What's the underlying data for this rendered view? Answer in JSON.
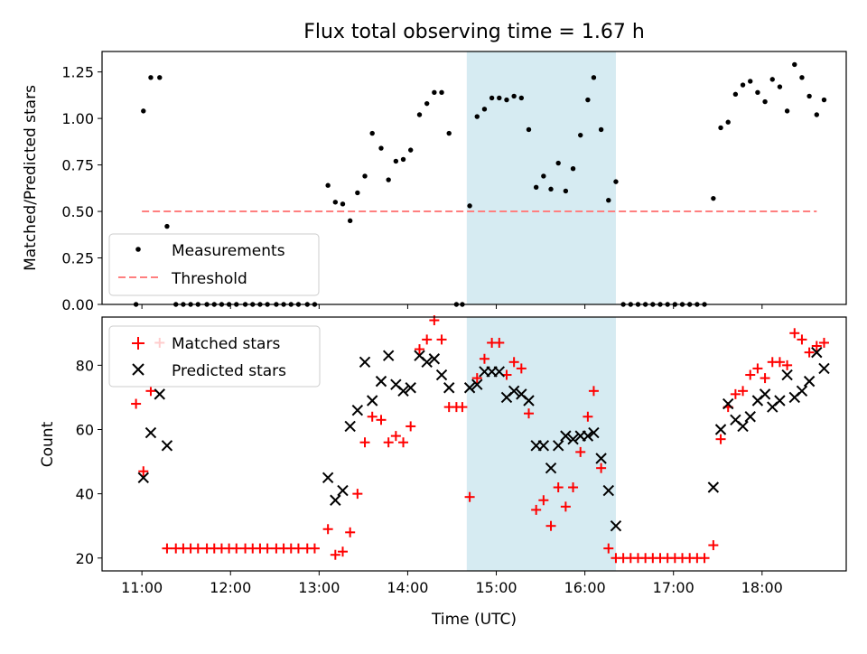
{
  "figure": {
    "title": "Flux total observing time = 1.67 h",
    "xlabel": "Time (UTC)"
  },
  "colors": {
    "measurement": "#000000",
    "threshold": "#ff7f7f",
    "matched": "#ff0000",
    "predicted": "#000000",
    "span": "#add8e6"
  },
  "chart_data": [
    {
      "type": "scatter",
      "ylabel": "Matched/Predicted stars",
      "xlim": [
        "10:33",
        "18:57"
      ],
      "ylim": [
        0,
        1.36
      ],
      "x_ticks": [
        "11:00",
        "12:00",
        "13:00",
        "14:00",
        "15:00",
        "16:00",
        "17:00",
        "18:00"
      ],
      "y_ticks": [
        "0.00",
        "0.25",
        "0.50",
        "0.75",
        "1.00",
        "1.25"
      ],
      "highlight_span": [
        "14:40",
        "16:21"
      ],
      "legend": {
        "placement": "lower-left",
        "entries": [
          "Measurements",
          "Threshold"
        ]
      },
      "threshold": {
        "name": "Threshold",
        "value": 0.5,
        "x_range": [
          "11:00",
          "18:37"
        ]
      },
      "series": [
        {
          "name": "Measurements",
          "points": [
            [
              "10:56",
              0.0
            ],
            [
              "11:01",
              1.04
            ],
            [
              "11:06",
              1.22
            ],
            [
              "11:12",
              1.22
            ],
            [
              "11:17",
              0.42
            ],
            [
              "11:23",
              0.0
            ],
            [
              "11:28",
              0.0
            ],
            [
              "11:33",
              0.0
            ],
            [
              "11:38",
              0.0
            ],
            [
              "11:44",
              0.0
            ],
            [
              "11:49",
              0.0
            ],
            [
              "11:54",
              0.0
            ],
            [
              "11:59",
              0.0
            ],
            [
              "12:04",
              0.0
            ],
            [
              "12:10",
              0.0
            ],
            [
              "12:15",
              0.0
            ],
            [
              "12:20",
              0.0
            ],
            [
              "12:25",
              0.0
            ],
            [
              "12:31",
              0.0
            ],
            [
              "12:36",
              0.0
            ],
            [
              "12:41",
              0.0
            ],
            [
              "12:46",
              0.0
            ],
            [
              "12:52",
              0.0
            ],
            [
              "12:57",
              0.0
            ],
            [
              "13:06",
              0.64
            ],
            [
              "13:11",
              0.55
            ],
            [
              "13:16",
              0.54
            ],
            [
              "13:21",
              0.45
            ],
            [
              "13:26",
              0.6
            ],
            [
              "13:31",
              0.69
            ],
            [
              "13:36",
              0.92
            ],
            [
              "13:42",
              0.84
            ],
            [
              "13:47",
              0.67
            ],
            [
              "13:52",
              0.77
            ],
            [
              "13:57",
              0.78
            ],
            [
              "14:02",
              0.83
            ],
            [
              "14:08",
              1.02
            ],
            [
              "14:13",
              1.08
            ],
            [
              "14:18",
              1.14
            ],
            [
              "14:23",
              1.14
            ],
            [
              "14:28",
              0.92
            ],
            [
              "14:33",
              0.0
            ],
            [
              "14:37",
              0.0
            ],
            [
              "14:42",
              0.53
            ],
            [
              "14:47",
              1.01
            ],
            [
              "14:52",
              1.05
            ],
            [
              "14:57",
              1.11
            ],
            [
              "15:02",
              1.11
            ],
            [
              "15:07",
              1.1
            ],
            [
              "15:12",
              1.12
            ],
            [
              "15:17",
              1.11
            ],
            [
              "15:22",
              0.94
            ],
            [
              "15:27",
              0.63
            ],
            [
              "15:32",
              0.69
            ],
            [
              "15:37",
              0.62
            ],
            [
              "15:42",
              0.76
            ],
            [
              "15:47",
              0.61
            ],
            [
              "15:52",
              0.73
            ],
            [
              "15:57",
              0.91
            ],
            [
              "16:02",
              1.1
            ],
            [
              "16:06",
              1.22
            ],
            [
              "16:11",
              0.94
            ],
            [
              "16:16",
              0.56
            ],
            [
              "16:21",
              0.66
            ],
            [
              "16:26",
              0.0
            ],
            [
              "16:31",
              0.0
            ],
            [
              "16:36",
              0.0
            ],
            [
              "16:41",
              0.0
            ],
            [
              "16:46",
              0.0
            ],
            [
              "16:51",
              0.0
            ],
            [
              "16:56",
              0.0
            ],
            [
              "17:01",
              0.0
            ],
            [
              "17:06",
              0.0
            ],
            [
              "17:11",
              0.0
            ],
            [
              "17:16",
              0.0
            ],
            [
              "17:21",
              0.0
            ],
            [
              "17:27",
              0.57
            ],
            [
              "17:32",
              0.95
            ],
            [
              "17:37",
              0.98
            ],
            [
              "17:42",
              1.13
            ],
            [
              "17:47",
              1.18
            ],
            [
              "17:52",
              1.2
            ],
            [
              "17:57",
              1.14
            ],
            [
              "18:02",
              1.09
            ],
            [
              "18:07",
              1.21
            ],
            [
              "18:12",
              1.17
            ],
            [
              "18:17",
              1.04
            ],
            [
              "18:22",
              1.29
            ],
            [
              "18:27",
              1.22
            ],
            [
              "18:32",
              1.12
            ],
            [
              "18:37",
              1.02
            ],
            [
              "18:42",
              1.1
            ]
          ]
        }
      ]
    },
    {
      "type": "scatter",
      "ylabel": "Count",
      "xlim": [
        "10:33",
        "18:57"
      ],
      "ylim": [
        16,
        95
      ],
      "x_ticks": [
        "11:00",
        "12:00",
        "13:00",
        "14:00",
        "15:00",
        "16:00",
        "17:00",
        "18:00"
      ],
      "y_ticks": [
        "20",
        "40",
        "60",
        "80"
      ],
      "highlight_span": [
        "14:40",
        "16:21"
      ],
      "legend": {
        "placement": "upper-left",
        "entries": [
          "Matched stars",
          "Predicted stars"
        ]
      },
      "series": [
        {
          "name": "Matched stars",
          "marker": "+",
          "points": [
            [
              "10:56",
              68
            ],
            [
              "11:01",
              47
            ],
            [
              "11:06",
              72
            ],
            [
              "11:12",
              87
            ],
            [
              "11:17",
              23
            ],
            [
              "11:23",
              23
            ],
            [
              "11:28",
              23
            ],
            [
              "11:33",
              23
            ],
            [
              "11:38",
              23
            ],
            [
              "11:44",
              23
            ],
            [
              "11:49",
              23
            ],
            [
              "11:54",
              23
            ],
            [
              "11:59",
              23
            ],
            [
              "12:04",
              23
            ],
            [
              "12:10",
              23
            ],
            [
              "12:15",
              23
            ],
            [
              "12:20",
              23
            ],
            [
              "12:25",
              23
            ],
            [
              "12:31",
              23
            ],
            [
              "12:36",
              23
            ],
            [
              "12:41",
              23
            ],
            [
              "12:46",
              23
            ],
            [
              "12:52",
              23
            ],
            [
              "12:57",
              23
            ],
            [
              "13:06",
              29
            ],
            [
              "13:11",
              21
            ],
            [
              "13:16",
              22
            ],
            [
              "13:21",
              28
            ],
            [
              "13:26",
              40
            ],
            [
              "13:31",
              56
            ],
            [
              "13:36",
              64
            ],
            [
              "13:42",
              63
            ],
            [
              "13:47",
              56
            ],
            [
              "13:52",
              58
            ],
            [
              "13:57",
              56
            ],
            [
              "14:02",
              61
            ],
            [
              "14:08",
              85
            ],
            [
              "14:13",
              88
            ],
            [
              "14:18",
              94
            ],
            [
              "14:23",
              88
            ],
            [
              "14:28",
              67
            ],
            [
              "14:33",
              67
            ],
            [
              "14:37",
              67
            ],
            [
              "14:42",
              39
            ],
            [
              "14:47",
              76
            ],
            [
              "14:52",
              82
            ],
            [
              "14:57",
              87
            ],
            [
              "15:02",
              87
            ],
            [
              "15:07",
              77
            ],
            [
              "15:12",
              81
            ],
            [
              "15:17",
              79
            ],
            [
              "15:22",
              65
            ],
            [
              "15:27",
              35
            ],
            [
              "15:32",
              38
            ],
            [
              "15:37",
              30
            ],
            [
              "15:42",
              42
            ],
            [
              "15:47",
              36
            ],
            [
              "15:52",
              42
            ],
            [
              "15:57",
              53
            ],
            [
              "16:02",
              64
            ],
            [
              "16:06",
              72
            ],
            [
              "16:11",
              48
            ],
            [
              "16:16",
              23
            ],
            [
              "16:21",
              20
            ],
            [
              "16:26",
              20
            ],
            [
              "16:31",
              20
            ],
            [
              "16:36",
              20
            ],
            [
              "16:41",
              20
            ],
            [
              "16:46",
              20
            ],
            [
              "16:51",
              20
            ],
            [
              "16:56",
              20
            ],
            [
              "17:01",
              20
            ],
            [
              "17:06",
              20
            ],
            [
              "17:11",
              20
            ],
            [
              "17:16",
              20
            ],
            [
              "17:21",
              20
            ],
            [
              "17:27",
              24
            ],
            [
              "17:32",
              57
            ],
            [
              "17:37",
              67
            ],
            [
              "17:42",
              71
            ],
            [
              "17:47",
              72
            ],
            [
              "17:52",
              77
            ],
            [
              "17:57",
              79
            ],
            [
              "18:02",
              76
            ],
            [
              "18:07",
              81
            ],
            [
              "18:12",
              81
            ],
            [
              "18:17",
              80
            ],
            [
              "18:22",
              90
            ],
            [
              "18:27",
              88
            ],
            [
              "18:32",
              84
            ],
            [
              "18:37",
              86
            ],
            [
              "18:42",
              87
            ]
          ]
        },
        {
          "name": "Predicted stars",
          "marker": "x",
          "points": [
            [
              "11:01",
              45
            ],
            [
              "11:06",
              59
            ],
            [
              "11:12",
              71
            ],
            [
              "11:17",
              55
            ],
            [
              "13:06",
              45
            ],
            [
              "13:11",
              38
            ],
            [
              "13:16",
              41
            ],
            [
              "13:21",
              61
            ],
            [
              "13:26",
              66
            ],
            [
              "13:31",
              81
            ],
            [
              "13:36",
              69
            ],
            [
              "13:42",
              75
            ],
            [
              "13:47",
              83
            ],
            [
              "13:52",
              74
            ],
            [
              "13:57",
              72
            ],
            [
              "14:02",
              73
            ],
            [
              "14:08",
              83
            ],
            [
              "14:13",
              81
            ],
            [
              "14:18",
              82
            ],
            [
              "14:23",
              77
            ],
            [
              "14:28",
              73
            ],
            [
              "14:42",
              73
            ],
            [
              "14:47",
              74
            ],
            [
              "14:52",
              78
            ],
            [
              "14:57",
              78
            ],
            [
              "15:02",
              78
            ],
            [
              "15:07",
              70
            ],
            [
              "15:12",
              72
            ],
            [
              "15:17",
              71
            ],
            [
              "15:22",
              69
            ],
            [
              "15:27",
              55
            ],
            [
              "15:32",
              55
            ],
            [
              "15:37",
              48
            ],
            [
              "15:42",
              55
            ],
            [
              "15:47",
              58
            ],
            [
              "15:52",
              57
            ],
            [
              "15:57",
              58
            ],
            [
              "16:02",
              58
            ],
            [
              "16:06",
              59
            ],
            [
              "16:11",
              51
            ],
            [
              "16:16",
              41
            ],
            [
              "16:21",
              30
            ],
            [
              "17:27",
              42
            ],
            [
              "17:32",
              60
            ],
            [
              "17:37",
              68
            ],
            [
              "17:42",
              63
            ],
            [
              "17:47",
              61
            ],
            [
              "17:52",
              64
            ],
            [
              "17:57",
              69
            ],
            [
              "18:02",
              71
            ],
            [
              "18:07",
              67
            ],
            [
              "18:12",
              69
            ],
            [
              "18:17",
              77
            ],
            [
              "18:22",
              70
            ],
            [
              "18:27",
              72
            ],
            [
              "18:32",
              75
            ],
            [
              "18:37",
              84
            ],
            [
              "18:42",
              79
            ]
          ]
        }
      ]
    }
  ]
}
